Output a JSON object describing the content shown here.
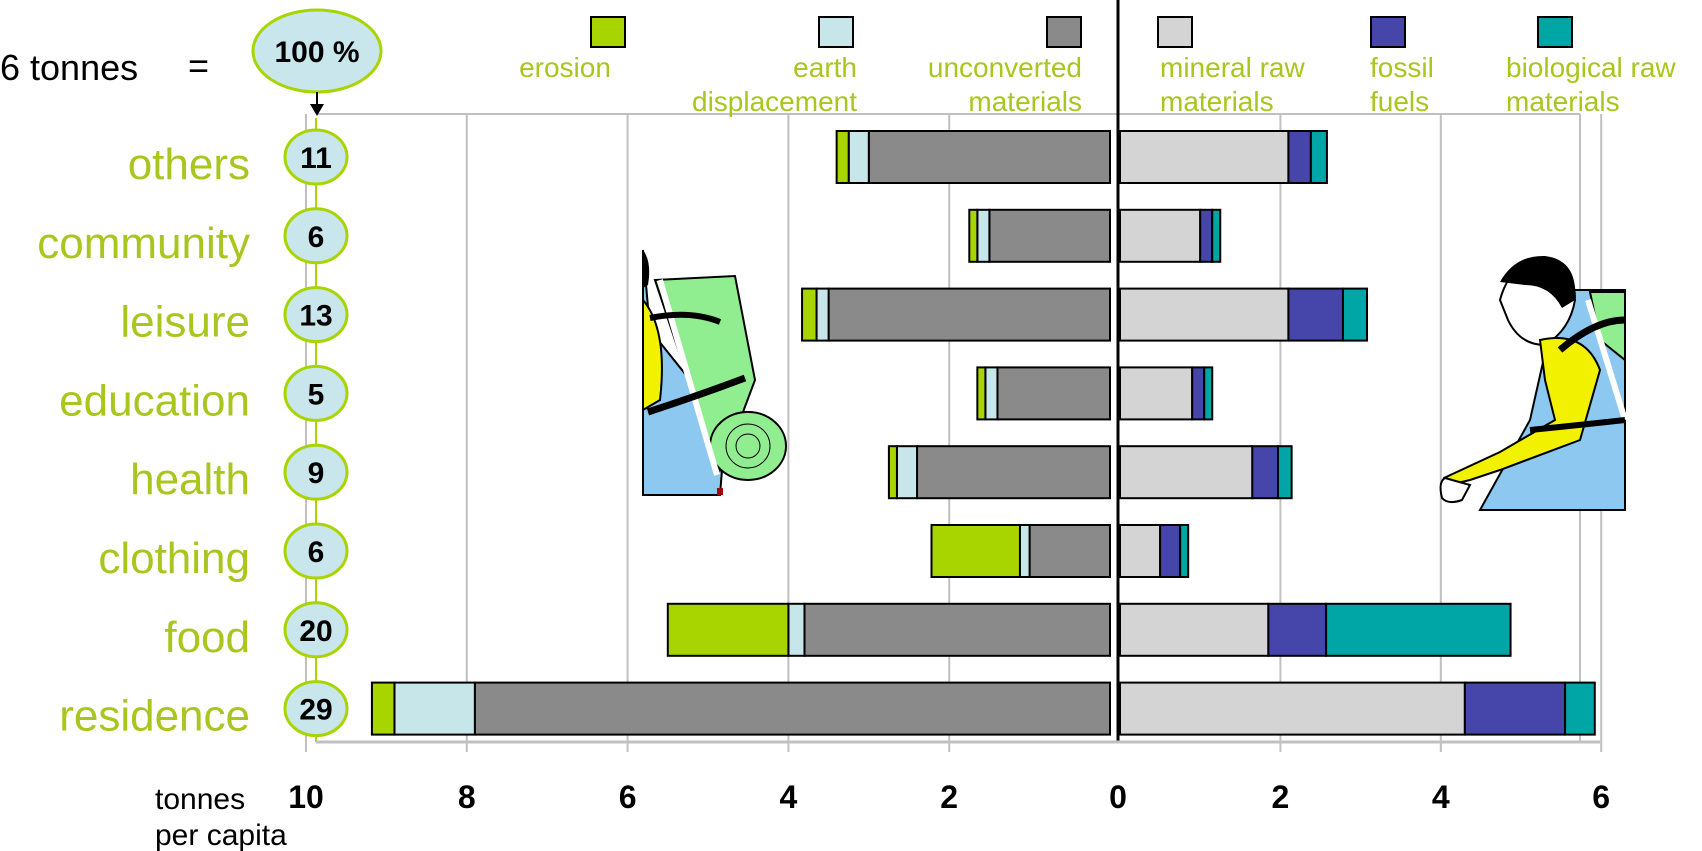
{
  "header": {
    "total_label": "6 tonnes",
    "equals": "=",
    "total_pct": "100 %"
  },
  "axis": {
    "unit_line1": "tonnes",
    "unit_line2": "per capita",
    "left_ticks": [
      "10",
      "8",
      "6",
      "4",
      "2"
    ],
    "zero_tick": "0",
    "right_ticks": [
      "2",
      "4",
      "6"
    ]
  },
  "colors": {
    "erosion": "#a8d400",
    "earth_displacement": "#c6e6ea",
    "unconverted_materials": "#8a8a8a",
    "mineral_raw_materials": "#d4d4d4",
    "fossil_fuels": "#4646aa",
    "biological_raw_materials": "#00a5a5",
    "label_green": "#a8c61e",
    "bubble_fill": "#c8e6ec",
    "bubble_stroke": "#a8d400"
  },
  "icons": {
    "left": "hiker-with-backpack-icon",
    "right": "hiker-walking-icon"
  },
  "chart_data": {
    "type": "bar",
    "orientation": "horizontal-diverging",
    "categories": [
      "others",
      "community",
      "leisure",
      "education",
      "health",
      "clothing",
      "food",
      "residence"
    ],
    "percentages": [
      "11",
      "6",
      "13",
      "5",
      "9",
      "6",
      "20",
      "29"
    ],
    "left_xlim": [
      0,
      10
    ],
    "right_xlim": [
      0,
      6
    ],
    "grid": true,
    "legend_position": "top",
    "left_series": [
      {
        "name": "erosion",
        "color_key": "erosion",
        "values": [
          0.15,
          0.1,
          0.18,
          0.1,
          0.1,
          1.1,
          1.5,
          0.28
        ]
      },
      {
        "name": "earth displacement",
        "color_key": "earth_displacement",
        "values": [
          0.25,
          0.15,
          0.15,
          0.15,
          0.25,
          0.12,
          0.2,
          1.0
        ]
      },
      {
        "name": "unconverted materials",
        "color_key": "unconverted_materials",
        "values": [
          3.0,
          1.5,
          3.5,
          1.4,
          2.4,
          1.0,
          3.8,
          7.9
        ]
      }
    ],
    "right_series": [
      {
        "name": "mineral raw materials",
        "color_key": "mineral_raw_materials",
        "values": [
          2.1,
          1.0,
          2.1,
          0.9,
          1.65,
          0.5,
          1.85,
          4.3
        ]
      },
      {
        "name": "fossil fuels",
        "color_key": "fossil_fuels",
        "values": [
          0.28,
          0.15,
          0.68,
          0.15,
          0.32,
          0.25,
          0.72,
          1.25
        ]
      },
      {
        "name": "biological raw materials",
        "color_key": "biological_raw_materials",
        "values": [
          0.2,
          0.1,
          0.3,
          0.1,
          0.17,
          0.1,
          2.3,
          0.37
        ]
      }
    ],
    "legend": [
      {
        "line1": "erosion",
        "line2": "",
        "color_key": "erosion"
      },
      {
        "line1": "earth",
        "line2": "displacement",
        "color_key": "earth_displacement"
      },
      {
        "line1": "unconverted",
        "line2": "materials",
        "color_key": "unconverted_materials"
      },
      {
        "line1": "mineral raw",
        "line2": "materials",
        "color_key": "mineral_raw_materials"
      },
      {
        "line1": "fossil",
        "line2": "fuels",
        "color_key": "fossil_fuels"
      },
      {
        "line1": "biological raw",
        "line2": "materials",
        "color_key": "biological_raw_materials"
      }
    ]
  }
}
